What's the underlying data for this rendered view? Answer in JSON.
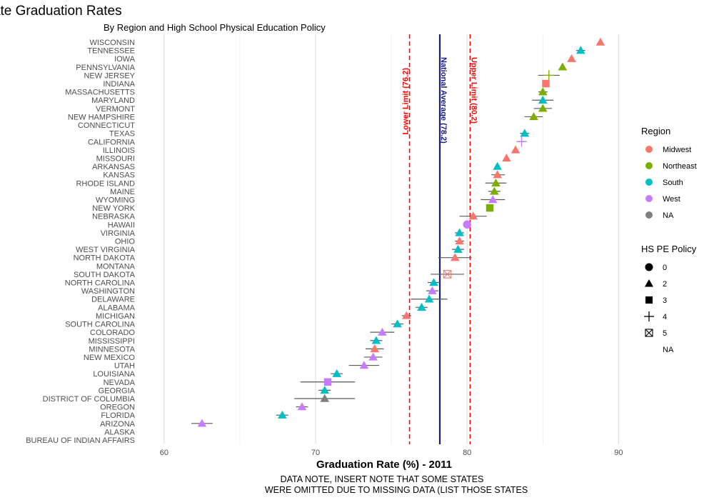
{
  "chart_data": {
    "type": "scatter",
    "title": "State Graduation Rates",
    "subtitle": "By Region and High School Physical Education Policy",
    "xlabel": "Graduation Rate (%) - 2011",
    "caption_lines": [
      "DATA NOTE, INSERT NOTE THAT SOME STATES",
      "WERE OMITTED DUE TO MISSING DATA (LIST THOSE STATES"
    ],
    "xlim": [
      56,
      93
    ],
    "x_ticks": [
      60,
      70,
      80,
      90
    ],
    "grid": true,
    "reference_lines": [
      {
        "label": "Lower Limit (76.2)",
        "value": 76.2,
        "color": "#ff0000",
        "style": "dashed"
      },
      {
        "label": "National Average (78.2)",
        "value": 78.2,
        "color": "#1a1a80",
        "style": "solid"
      },
      {
        "label": "Upper Limit (80.2)",
        "value": 80.2,
        "color": "#ff0000",
        "style": "dashed"
      }
    ],
    "region_colors": {
      "Midwest": "#f8766d",
      "Northeast": "#7cae00",
      "South": "#00bfc4",
      "West": "#c77cff",
      "NA": "#7f7f7f"
    },
    "legend_region": {
      "title": "Region",
      "items": [
        "Midwest",
        "Northeast",
        "South",
        "West",
        "NA"
      ]
    },
    "legend_policy": {
      "title": "HS PE Policy",
      "items": [
        "0",
        "2",
        "3",
        "4",
        "5",
        "NA"
      ]
    },
    "states": [
      {
        "name": "WISCONSIN",
        "rate": 88.8,
        "lo": 88.8,
        "hi": 88.8,
        "region": "Midwest",
        "policy": "2"
      },
      {
        "name": "TENNESSEE",
        "rate": 87.5,
        "lo": 87.2,
        "hi": 87.8,
        "region": "South",
        "policy": "2"
      },
      {
        "name": "IOWA",
        "rate": 86.9,
        "lo": 86.9,
        "hi": 86.9,
        "region": "Midwest",
        "policy": "2"
      },
      {
        "name": "PENNSYLVANIA",
        "rate": 86.3,
        "lo": 86.3,
        "hi": 86.3,
        "region": "Northeast",
        "policy": "2"
      },
      {
        "name": "NEW JERSEY",
        "rate": 85.4,
        "lo": 84.7,
        "hi": 86.1,
        "region": "Northeast",
        "policy": "4"
      },
      {
        "name": "INDIANA",
        "rate": 85.2,
        "lo": 85.0,
        "hi": 85.4,
        "region": "Midwest",
        "policy": "3"
      },
      {
        "name": "MASSACHUSETTS",
        "rate": 85.0,
        "lo": 84.7,
        "hi": 85.3,
        "region": "Northeast",
        "policy": "2"
      },
      {
        "name": "MARYLAND",
        "rate": 85.0,
        "lo": 84.3,
        "hi": 85.7,
        "region": "South",
        "policy": "2"
      },
      {
        "name": "VERMONT",
        "rate": 85.0,
        "lo": 84.4,
        "hi": 85.6,
        "region": "Northeast",
        "policy": "2"
      },
      {
        "name": "NEW HAMPSHIRE",
        "rate": 84.4,
        "lo": 83.8,
        "hi": 85.0,
        "region": "Northeast",
        "policy": "2"
      },
      {
        "name": "CONNECTICUT",
        "rate": null,
        "lo": null,
        "hi": null,
        "region": "Northeast",
        "policy": "NA"
      },
      {
        "name": "TEXAS",
        "rate": 83.8,
        "lo": 83.5,
        "hi": 84.1,
        "region": "South",
        "policy": "2"
      },
      {
        "name": "CALIFORNIA",
        "rate": 83.6,
        "lo": 83.3,
        "hi": 83.9,
        "region": "West",
        "policy": "4"
      },
      {
        "name": "ILLINOIS",
        "rate": 83.2,
        "lo": 83.2,
        "hi": 83.2,
        "region": "Midwest",
        "policy": "2"
      },
      {
        "name": "MISSOURI",
        "rate": 82.6,
        "lo": 82.6,
        "hi": 82.6,
        "region": "Midwest",
        "policy": "2"
      },
      {
        "name": "ARKANSAS",
        "rate": 82.0,
        "lo": 82.0,
        "hi": 82.0,
        "region": "South",
        "policy": "2"
      },
      {
        "name": "KANSAS",
        "rate": 82.0,
        "lo": 81.6,
        "hi": 82.5,
        "region": "Midwest",
        "policy": "2"
      },
      {
        "name": "RHODE ISLAND",
        "rate": 81.9,
        "lo": 81.2,
        "hi": 82.6,
        "region": "Northeast",
        "policy": "2"
      },
      {
        "name": "MAINE",
        "rate": 81.8,
        "lo": 81.4,
        "hi": 82.2,
        "region": "Northeast",
        "policy": "2"
      },
      {
        "name": "WYOMING",
        "rate": 81.7,
        "lo": 80.9,
        "hi": 82.5,
        "region": "West",
        "policy": "2"
      },
      {
        "name": "NEW YORK",
        "rate": 81.5,
        "lo": 81.5,
        "hi": 81.5,
        "region": "Northeast",
        "policy": "3"
      },
      {
        "name": "NEBRASKA",
        "rate": 80.4,
        "lo": 79.5,
        "hi": 81.3,
        "region": "Midwest",
        "policy": "2"
      },
      {
        "name": "HAWAII",
        "rate": 80.0,
        "lo": 80.0,
        "hi": 80.0,
        "region": "West",
        "policy": "0"
      },
      {
        "name": "VIRGINIA",
        "rate": 79.5,
        "lo": 79.2,
        "hi": 79.8,
        "region": "South",
        "policy": "2"
      },
      {
        "name": "OHIO",
        "rate": 79.5,
        "lo": 79.2,
        "hi": 79.8,
        "region": "Midwest",
        "policy": "2"
      },
      {
        "name": "WEST VIRGINIA",
        "rate": 79.4,
        "lo": 79.0,
        "hi": 79.8,
        "region": "South",
        "policy": "2"
      },
      {
        "name": "NORTH DAKOTA",
        "rate": 79.2,
        "lo": 78.1,
        "hi": 80.3,
        "region": "Midwest",
        "policy": "2"
      },
      {
        "name": "MONTANA",
        "rate": null,
        "lo": null,
        "hi": null,
        "region": "West",
        "policy": "NA"
      },
      {
        "name": "SOUTH DAKOTA",
        "rate": 78.7,
        "lo": 77.6,
        "hi": 79.8,
        "region": "Midwest",
        "policy": "5"
      },
      {
        "name": "NORTH CAROLINA",
        "rate": 77.8,
        "lo": 77.4,
        "hi": 78.2,
        "region": "South",
        "policy": "2"
      },
      {
        "name": "WASHINGTON",
        "rate": 77.7,
        "lo": 77.3,
        "hi": 78.1,
        "region": "West",
        "policy": "2"
      },
      {
        "name": "DELAWARE",
        "rate": 77.5,
        "lo": 76.3,
        "hi": 78.7,
        "region": "South",
        "policy": "2"
      },
      {
        "name": "ALABAMA",
        "rate": 77.0,
        "lo": 76.6,
        "hi": 77.4,
        "region": "South",
        "policy": "2"
      },
      {
        "name": "MICHIGAN",
        "rate": 76.0,
        "lo": 75.7,
        "hi": 76.3,
        "region": "Midwest",
        "policy": "2"
      },
      {
        "name": "SOUTH CAROLINA",
        "rate": 75.4,
        "lo": 75.0,
        "hi": 75.8,
        "region": "South",
        "policy": "2"
      },
      {
        "name": "COLORADO",
        "rate": 74.4,
        "lo": 73.6,
        "hi": 75.2,
        "region": "West",
        "policy": "2"
      },
      {
        "name": "MISSISSIPPI",
        "rate": 74.0,
        "lo": 73.6,
        "hi": 74.4,
        "region": "South",
        "policy": "2"
      },
      {
        "name": "MINNESOTA",
        "rate": 73.9,
        "lo": 73.3,
        "hi": 74.5,
        "region": "Midwest",
        "policy": "2"
      },
      {
        "name": "NEW MEXICO",
        "rate": 73.8,
        "lo": 73.2,
        "hi": 74.4,
        "region": "West",
        "policy": "2"
      },
      {
        "name": "UTAH",
        "rate": 73.2,
        "lo": 72.2,
        "hi": 74.2,
        "region": "West",
        "policy": "2"
      },
      {
        "name": "LOUISIANA",
        "rate": 71.4,
        "lo": 71.0,
        "hi": 71.8,
        "region": "South",
        "policy": "2"
      },
      {
        "name": "NEVADA",
        "rate": 70.8,
        "lo": 69.0,
        "hi": 72.6,
        "region": "West",
        "policy": "3"
      },
      {
        "name": "GEORGIA",
        "rate": 70.6,
        "lo": 70.2,
        "hi": 71.0,
        "region": "South",
        "policy": "2"
      },
      {
        "name": "DISTRICT OF COLUMBIA",
        "rate": 70.6,
        "lo": 68.6,
        "hi": 72.6,
        "region": "NA",
        "policy": "2"
      },
      {
        "name": "OREGON",
        "rate": 69.1,
        "lo": 68.7,
        "hi": 69.5,
        "region": "West",
        "policy": "2"
      },
      {
        "name": "FLORIDA",
        "rate": 67.8,
        "lo": 67.4,
        "hi": 68.2,
        "region": "South",
        "policy": "2"
      },
      {
        "name": "ARIZONA",
        "rate": 62.5,
        "lo": 61.8,
        "hi": 63.2,
        "region": "West",
        "policy": "2"
      },
      {
        "name": "ALASKA",
        "rate": null,
        "lo": null,
        "hi": null,
        "region": "West",
        "policy": "NA"
      },
      {
        "name": "BUREAU OF INDIAN AFFAIRS",
        "rate": null,
        "lo": null,
        "hi": null,
        "region": "NA",
        "policy": "NA"
      }
    ]
  }
}
